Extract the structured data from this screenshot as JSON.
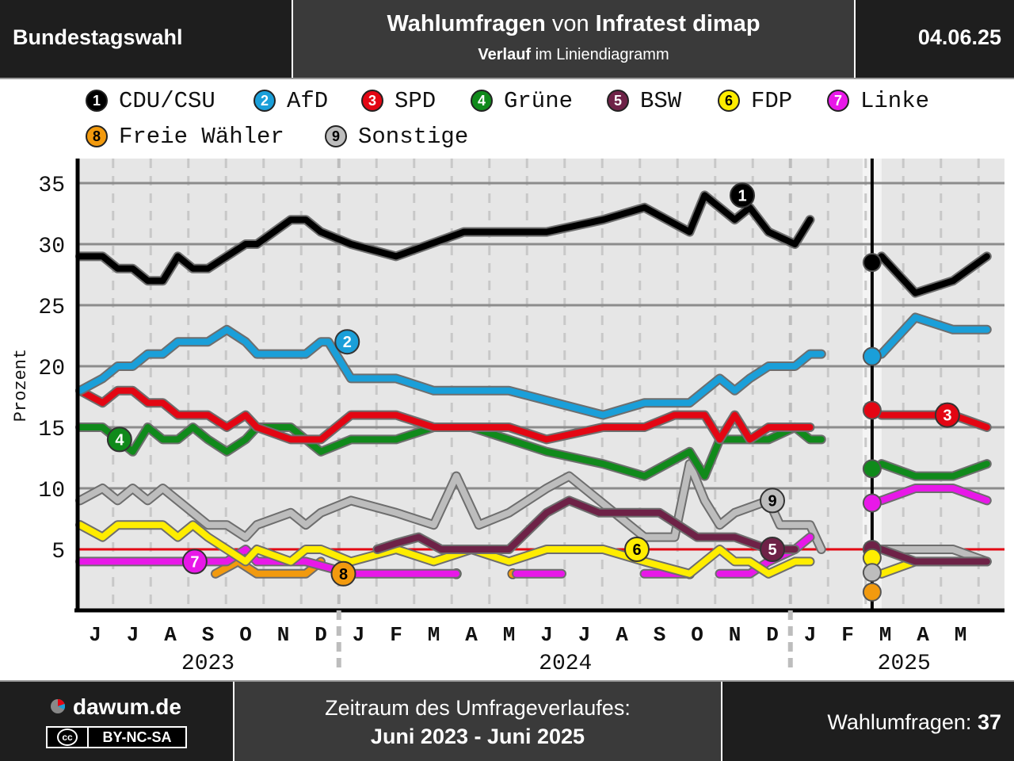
{
  "header": {
    "left": "Bundestagswahl",
    "title_bold1": "Wahlumfragen",
    "title_mid": " von ",
    "title_bold2": "Infratest dimap",
    "sub_bold": "Verlauf",
    "sub_rest": " im Liniendiagramm",
    "date": "04.06.25"
  },
  "legend": [
    {
      "num": "1",
      "name": "CDU/CSU",
      "color": "#000000",
      "text": "#ffffff"
    },
    {
      "num": "2",
      "name": "AfD",
      "color": "#1a9fd9",
      "text": "#ffffff"
    },
    {
      "num": "3",
      "name": "SPD",
      "color": "#e30613",
      "text": "#ffffff"
    },
    {
      "num": "4",
      "name": "Grüne",
      "color": "#108a1b",
      "text": "#ffffff"
    },
    {
      "num": "5",
      "name": "BSW",
      "color": "#6e2247",
      "text": "#ffffff"
    },
    {
      "num": "6",
      "name": "FDP",
      "color": "#ffed00",
      "text": "#000000"
    },
    {
      "num": "7",
      "name": "Linke",
      "color": "#e818e8",
      "text": "#ffffff"
    },
    {
      "num": "8",
      "name": "Freie Wähler",
      "color": "#f29a0e",
      "text": "#000000"
    },
    {
      "num": "9",
      "name": "Sonstige",
      "color": "#bdbdbd",
      "text": "#000000"
    }
  ],
  "chart_data": {
    "type": "line",
    "ylabel": "Prozent",
    "ylim": [
      0,
      37
    ],
    "yticks": [
      5,
      10,
      15,
      20,
      25,
      30,
      35
    ],
    "threshold": 5,
    "grid": true,
    "month_labels": [
      "J",
      "J",
      "A",
      "S",
      "O",
      "N",
      "D",
      "J",
      "F",
      "M",
      "A",
      "M",
      "J",
      "J",
      "A",
      "S",
      "O",
      "N",
      "D",
      "J",
      "F",
      "M",
      "A",
      "M"
    ],
    "year_labels": [
      {
        "label": "2023",
        "month": 3.0
      },
      {
        "label": "2024",
        "month": 12.5
      },
      {
        "label": "2025",
        "month": 21.5
      }
    ],
    "election_marker": {
      "month": 20.65,
      "results": [
        {
          "series": "CDU/CSU",
          "value": 28.5
        },
        {
          "series": "AfD",
          "value": 20.8
        },
        {
          "series": "SPD",
          "value": 16.4
        },
        {
          "series": "Grüne",
          "value": 11.6
        },
        {
          "series": "Linke",
          "value": 8.8
        },
        {
          "series": "BSW",
          "value": 5.0
        },
        {
          "series": "FDP",
          "value": 4.3
        },
        {
          "series": "Sonstige",
          "value": 3.1
        },
        {
          "series": "Freie Wähler",
          "value": 1.5
        }
      ]
    },
    "series": [
      {
        "name": "CDU/CSU",
        "color": "#000000",
        "label_at": [
          17.2,
          34
        ],
        "pre": [
          [
            -0.4,
            29
          ],
          [
            0.2,
            29
          ],
          [
            0.6,
            28
          ],
          [
            1.0,
            28
          ],
          [
            1.4,
            27
          ],
          [
            1.8,
            27
          ],
          [
            2.2,
            29
          ],
          [
            2.6,
            28
          ],
          [
            3.0,
            28
          ],
          [
            3.5,
            29
          ],
          [
            4.0,
            30
          ],
          [
            4.3,
            30
          ],
          [
            5.2,
            32
          ],
          [
            5.6,
            32
          ],
          [
            6.0,
            31
          ],
          [
            6.8,
            30
          ],
          [
            8.0,
            29
          ],
          [
            9.8,
            31
          ],
          [
            11.0,
            31
          ],
          [
            12.0,
            31
          ],
          [
            13.5,
            32
          ],
          [
            14.6,
            33
          ],
          [
            15.8,
            31
          ],
          [
            16.2,
            34
          ],
          [
            17.0,
            32
          ],
          [
            17.4,
            33
          ],
          [
            17.9,
            31
          ],
          [
            18.6,
            30
          ],
          [
            19.0,
            32
          ]
        ],
        "post": [
          [
            20.9,
            29
          ],
          [
            21.8,
            26
          ],
          [
            22.8,
            27
          ],
          [
            23.7,
            29
          ]
        ]
      },
      {
        "name": "AfD",
        "color": "#1a9fd9",
        "label_at": [
          6.7,
          22
        ],
        "pre": [
          [
            -0.4,
            18
          ],
          [
            0.2,
            19
          ],
          [
            0.6,
            20
          ],
          [
            1.0,
            20
          ],
          [
            1.4,
            21
          ],
          [
            1.8,
            21
          ],
          [
            2.2,
            22
          ],
          [
            3.0,
            22
          ],
          [
            3.5,
            23
          ],
          [
            4.0,
            22
          ],
          [
            4.3,
            21
          ],
          [
            5.2,
            21
          ],
          [
            5.6,
            21
          ],
          [
            6.0,
            22
          ],
          [
            6.2,
            22
          ],
          [
            6.8,
            19
          ],
          [
            7.6,
            19
          ],
          [
            8.0,
            19
          ],
          [
            9.0,
            18
          ],
          [
            11.0,
            18
          ],
          [
            13.5,
            16
          ],
          [
            14.6,
            17
          ],
          [
            15.8,
            17
          ],
          [
            16.2,
            18
          ],
          [
            16.6,
            19
          ],
          [
            17.0,
            18
          ],
          [
            17.4,
            19
          ],
          [
            17.9,
            20
          ],
          [
            18.6,
            20
          ],
          [
            19.0,
            21
          ],
          [
            19.3,
            21
          ]
        ],
        "post": [
          [
            20.9,
            21
          ],
          [
            21.8,
            24
          ],
          [
            22.8,
            23
          ],
          [
            23.7,
            23
          ]
        ]
      },
      {
        "name": "SPD",
        "color": "#e30613",
        "label_at": [
          22.65,
          16
        ],
        "pre": [
          [
            -0.4,
            18
          ],
          [
            0.2,
            17
          ],
          [
            0.6,
            18
          ],
          [
            1.0,
            18
          ],
          [
            1.4,
            17
          ],
          [
            1.8,
            17
          ],
          [
            2.2,
            16
          ],
          [
            3.0,
            16
          ],
          [
            3.5,
            15
          ],
          [
            4.0,
            16
          ],
          [
            4.3,
            15
          ],
          [
            5.2,
            14
          ],
          [
            5.6,
            14
          ],
          [
            6.0,
            14
          ],
          [
            6.8,
            16
          ],
          [
            8.0,
            16
          ],
          [
            9.0,
            15
          ],
          [
            11.0,
            15
          ],
          [
            12.0,
            14
          ],
          [
            13.5,
            15
          ],
          [
            14.6,
            15
          ],
          [
            15.4,
            16
          ],
          [
            16.2,
            16
          ],
          [
            16.6,
            14
          ],
          [
            17.0,
            16
          ],
          [
            17.4,
            14
          ],
          [
            17.9,
            15
          ],
          [
            18.6,
            15
          ],
          [
            19.0,
            15
          ]
        ],
        "post": [
          [
            20.9,
            16
          ],
          [
            21.8,
            16
          ],
          [
            22.8,
            16
          ],
          [
            23.7,
            15
          ]
        ]
      },
      {
        "name": "Grüne",
        "color": "#108a1b",
        "label_at": [
          0.65,
          14
        ],
        "pre": [
          [
            -0.4,
            15
          ],
          [
            0.2,
            15
          ],
          [
            0.6,
            14
          ],
          [
            1.0,
            13
          ],
          [
            1.4,
            15
          ],
          [
            1.8,
            14
          ],
          [
            2.2,
            14
          ],
          [
            2.6,
            15
          ],
          [
            3.0,
            14
          ],
          [
            3.5,
            13
          ],
          [
            4.0,
            14
          ],
          [
            4.3,
            15
          ],
          [
            5.2,
            15
          ],
          [
            5.6,
            14
          ],
          [
            6.0,
            13
          ],
          [
            6.8,
            14
          ],
          [
            8.0,
            14
          ],
          [
            9.0,
            15
          ],
          [
            10.0,
            15
          ],
          [
            12.0,
            13
          ],
          [
            13.5,
            12
          ],
          [
            14.6,
            11
          ],
          [
            15.8,
            13
          ],
          [
            16.2,
            11
          ],
          [
            16.6,
            14
          ],
          [
            17.0,
            14
          ],
          [
            17.9,
            14
          ],
          [
            18.6,
            15
          ],
          [
            19.0,
            14
          ],
          [
            19.3,
            14
          ]
        ],
        "post": [
          [
            20.9,
            12
          ],
          [
            21.8,
            11
          ],
          [
            22.8,
            11
          ],
          [
            23.7,
            12
          ]
        ]
      },
      {
        "name": "BSW",
        "color": "#6e2247",
        "label_at": [
          18.0,
          5
        ],
        "pre": [
          [
            7.5,
            5
          ],
          [
            8.0,
            5.5
          ],
          [
            8.6,
            6
          ],
          [
            9.2,
            5
          ],
          [
            10.0,
            5
          ],
          [
            11.0,
            5
          ],
          [
            12.0,
            8
          ],
          [
            12.6,
            9
          ],
          [
            13.4,
            8
          ],
          [
            15.0,
            8
          ],
          [
            16.0,
            6
          ],
          [
            17.0,
            6
          ],
          [
            17.9,
            5
          ],
          [
            18.6,
            5
          ]
        ],
        "post": [
          [
            20.9,
            5
          ],
          [
            21.8,
            4
          ],
          [
            22.8,
            4
          ],
          [
            23.7,
            4
          ]
        ]
      },
      {
        "name": "FDP",
        "color": "#ffed00",
        "label_at": [
          14.4,
          5
        ],
        "pre": [
          [
            -0.4,
            7
          ],
          [
            0.2,
            6
          ],
          [
            0.6,
            7
          ],
          [
            1.0,
            7
          ],
          [
            1.4,
            7
          ],
          [
            1.8,
            7
          ],
          [
            2.2,
            6
          ],
          [
            2.6,
            7
          ],
          [
            3.0,
            6
          ],
          [
            3.5,
            5
          ],
          [
            4.0,
            4
          ],
          [
            4.3,
            5
          ],
          [
            5.2,
            4
          ],
          [
            5.6,
            5
          ],
          [
            6.0,
            5
          ],
          [
            6.8,
            4
          ],
          [
            8.0,
            5
          ],
          [
            9.0,
            4
          ],
          [
            10.0,
            5
          ],
          [
            11.0,
            4
          ],
          [
            12.0,
            5
          ],
          [
            13.5,
            5
          ],
          [
            14.6,
            4
          ],
          [
            15.8,
            3
          ],
          [
            16.2,
            4
          ],
          [
            16.6,
            5
          ],
          [
            17.0,
            4
          ],
          [
            17.4,
            4
          ],
          [
            17.9,
            3
          ],
          [
            18.6,
            4
          ],
          [
            19.0,
            4
          ]
        ],
        "post": [
          [
            20.9,
            3
          ],
          [
            21.8,
            4
          ],
          [
            22.8,
            4
          ],
          [
            23.7,
            4
          ]
        ]
      },
      {
        "name": "Linke",
        "color": "#e818e8",
        "label_at": [
          2.65,
          4
        ],
        "pre": [
          [
            -0.4,
            4
          ],
          [
            0.6,
            4
          ],
          [
            2.2,
            4
          ],
          [
            3.0,
            4
          ],
          [
            3.5,
            4
          ],
          [
            4.0,
            5
          ],
          [
            4.3,
            4
          ],
          [
            5.2,
            4
          ],
          [
            5.6,
            4
          ],
          [
            6.8,
            3
          ],
          [
            8.0,
            3
          ],
          [
            9.6,
            3
          ]
        ],
        "pre2": [
          [
            11.2,
            3
          ],
          [
            12.4,
            3
          ]
        ],
        "pre3": [
          [
            14.6,
            3
          ],
          [
            15.8,
            3
          ]
        ],
        "pre4": [
          [
            16.6,
            3
          ],
          [
            17.4,
            3
          ],
          [
            17.9,
            4
          ],
          [
            18.6,
            5
          ],
          [
            19.0,
            6
          ]
        ],
        "post": [
          [
            20.9,
            9
          ],
          [
            21.8,
            10
          ],
          [
            22.8,
            10
          ],
          [
            23.7,
            9
          ]
        ]
      },
      {
        "name": "Freie Wähler",
        "color": "#f29a0e",
        "label_at": [
          6.6,
          3
        ],
        "pre": [
          [
            3.2,
            3
          ],
          [
            3.8,
            4
          ],
          [
            4.3,
            3
          ],
          [
            5.2,
            3
          ],
          [
            5.6,
            3
          ],
          [
            6.0,
            4
          ]
        ],
        "dots": [
          [
            9.6,
            3
          ],
          [
            11.1,
            3
          ],
          [
            15.8,
            3
          ]
        ]
      },
      {
        "name": "Sonstige",
        "color": "#bdbdbd",
        "label_at": [
          18.0,
          9
        ],
        "pre": [
          [
            -0.4,
            9
          ],
          [
            0.2,
            10
          ],
          [
            0.6,
            9
          ],
          [
            1.0,
            10
          ],
          [
            1.4,
            9
          ],
          [
            1.8,
            10
          ],
          [
            2.2,
            9
          ],
          [
            2.6,
            8
          ],
          [
            3.0,
            7
          ],
          [
            3.5,
            7
          ],
          [
            4.0,
            6
          ],
          [
            4.3,
            7
          ],
          [
            5.2,
            8
          ],
          [
            5.6,
            7
          ],
          [
            6.0,
            8
          ],
          [
            6.8,
            9
          ],
          [
            8.0,
            8
          ],
          [
            9.0,
            7
          ],
          [
            9.6,
            11
          ],
          [
            10.2,
            7
          ],
          [
            11.0,
            8
          ],
          [
            12.0,
            10
          ],
          [
            12.6,
            11
          ],
          [
            13.4,
            9
          ],
          [
            14.6,
            6
          ],
          [
            15.4,
            6
          ],
          [
            15.8,
            12
          ],
          [
            16.2,
            9
          ],
          [
            16.6,
            7
          ],
          [
            17.0,
            8
          ],
          [
            17.9,
            9
          ],
          [
            18.2,
            7
          ],
          [
            18.6,
            7
          ],
          [
            19.0,
            7
          ],
          [
            19.3,
            5
          ]
        ],
        "post": [
          [
            20.9,
            5
          ],
          [
            21.8,
            5
          ],
          [
            22.8,
            5
          ],
          [
            23.7,
            4
          ]
        ]
      }
    ]
  },
  "footer": {
    "brand": "dawum.de",
    "license": "BY-NC-SA",
    "license_cc": "cc",
    "range_label": "Zeitraum des Umfrageverlaufes:",
    "range_value": "Juni 2023 - Juni 2025",
    "count_label": "Wahlumfragen: ",
    "count_value": "37"
  }
}
